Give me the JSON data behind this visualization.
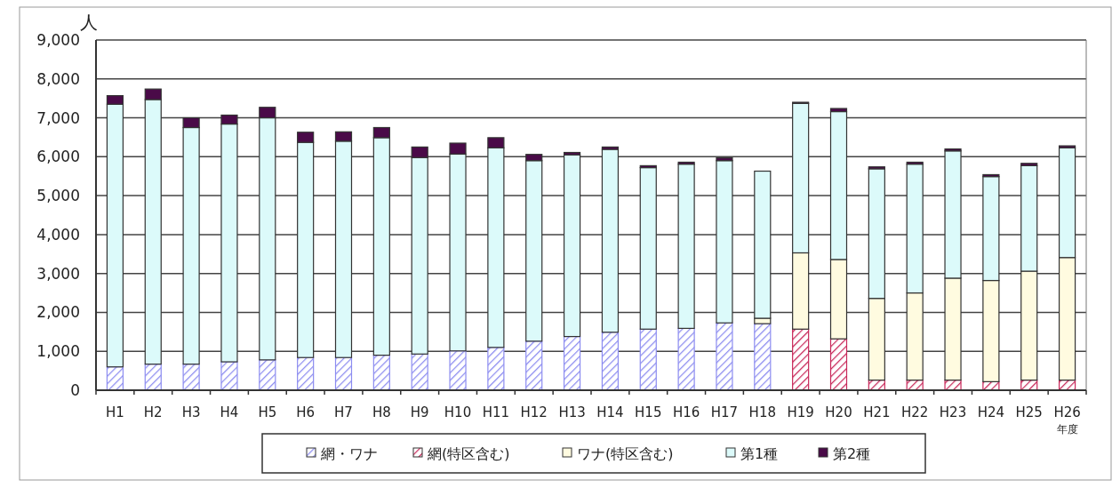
{
  "chart_data": {
    "type": "bar",
    "stacked": true,
    "ylabel": "人",
    "xlabel": "年度",
    "categories": [
      "H1",
      "H2",
      "H3",
      "H4",
      "H5",
      "H6",
      "H7",
      "H8",
      "H9",
      "H10",
      "H11",
      "H12",
      "H13",
      "H14",
      "H15",
      "H16",
      "H17",
      "H18",
      "H19",
      "H20",
      "H21",
      "H22",
      "H23",
      "H24",
      "H25",
      "H26"
    ],
    "series": [
      {
        "name": "網・ワナ",
        "color": "#8c8cf0",
        "values": [
          600,
          670,
          670,
          730,
          780,
          840,
          840,
          900,
          930,
          1010,
          1100,
          1260,
          1380,
          1490,
          1570,
          1590,
          1730,
          1710,
          null,
          null,
          null,
          null,
          null,
          null,
          null,
          null
        ]
      },
      {
        "name": "網(特区含む)",
        "color": "#c8285a",
        "values": [
          null,
          null,
          null,
          null,
          null,
          null,
          null,
          null,
          null,
          null,
          null,
          null,
          null,
          null,
          null,
          null,
          null,
          null,
          1570,
          1320,
          260,
          260,
          260,
          220,
          260,
          260
        ]
      },
      {
        "name": "ワナ(特区含む)",
        "color": "#fffbe0",
        "values": [
          null,
          null,
          null,
          null,
          null,
          null,
          null,
          null,
          null,
          null,
          null,
          null,
          null,
          null,
          null,
          null,
          null,
          140,
          1960,
          2040,
          2100,
          2240,
          2620,
          2600,
          2800,
          3150
        ]
      },
      {
        "name": "第1種",
        "color": "#dcfafa",
        "values": [
          6750,
          6800,
          6080,
          6110,
          6220,
          5530,
          5560,
          5590,
          5050,
          5060,
          5130,
          4640,
          4670,
          4700,
          4150,
          4220,
          4170,
          3780,
          3840,
          3800,
          3330,
          3310,
          3270,
          2670,
          2710,
          2820
        ]
      },
      {
        "name": "第2種",
        "color": "#4a0a48",
        "values": [
          220,
          270,
          250,
          230,
          270,
          260,
          240,
          260,
          270,
          280,
          260,
          160,
          60,
          60,
          50,
          50,
          70,
          null,
          30,
          80,
          50,
          50,
          50,
          50,
          60,
          50
        ]
      }
    ],
    "ylim": [
      0,
      9000
    ],
    "yticks": [
      {
        "value": 0,
        "label": "0"
      },
      {
        "value": 1000,
        "label": "1,000"
      },
      {
        "value": 2000,
        "label": "2,000"
      },
      {
        "value": 3000,
        "label": "3,000"
      },
      {
        "value": 4000,
        "label": "4,000"
      },
      {
        "value": 5000,
        "label": "5,000"
      },
      {
        "value": 6000,
        "label": "6,000"
      },
      {
        "value": 7000,
        "label": "7,000"
      },
      {
        "value": 8000,
        "label": "8,000"
      },
      {
        "value": 9000,
        "label": "9,000"
      }
    ],
    "grid": "y",
    "legend": "bottom"
  }
}
